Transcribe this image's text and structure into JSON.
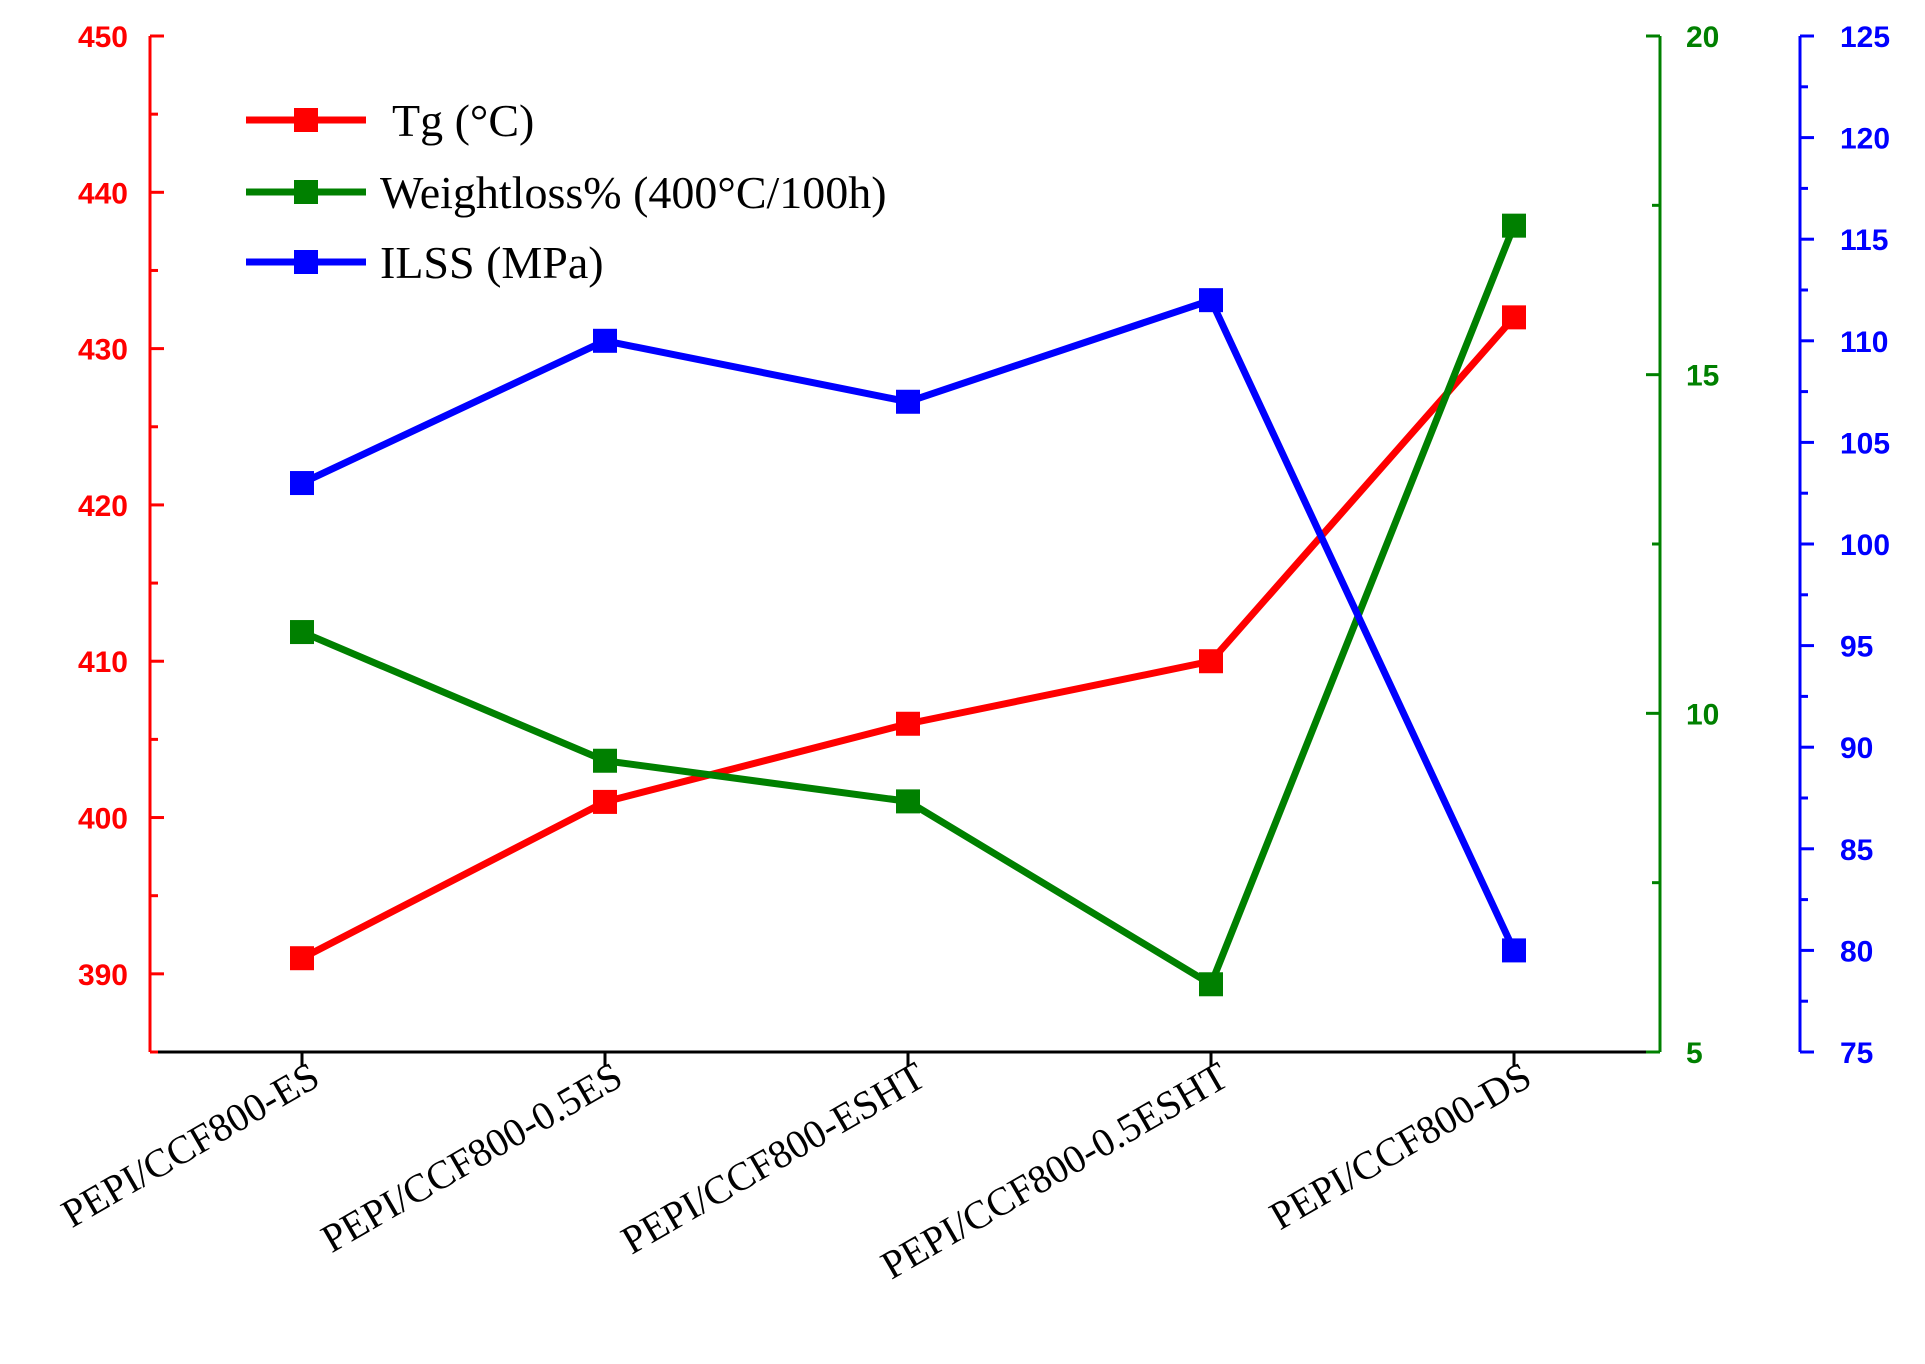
{
  "chart_data": {
    "type": "line",
    "categories": [
      "PEPI/CCF800-ES",
      "PEPI/CCF800-0.5ES",
      "PEPI/CCF800-ESHT",
      "PEPI/CCF800-0.5ESHT",
      "PEPI/CCF800-DS"
    ],
    "series": [
      {
        "name": "Tg (°C)",
        "axis": "left",
        "color": "#ff0000",
        "values": [
          391,
          401,
          406,
          410,
          432
        ]
      },
      {
        "name": "Weightloss% (400°C/100h)",
        "axis": "right1",
        "color": "#008000",
        "values": [
          11.2,
          9.3,
          8.7,
          6.0,
          17.2
        ]
      },
      {
        "name": "ILSS (MPa)",
        "axis": "right2",
        "color": "#0000ff",
        "values": [
          103,
          110,
          107,
          112,
          80
        ]
      }
    ],
    "axes": {
      "left": {
        "min": 385,
        "max": 450,
        "ticks": [
          390,
          400,
          410,
          420,
          430,
          440,
          450
        ],
        "color": "#ff0000"
      },
      "right1": {
        "min": 5,
        "max": 20,
        "ticks": [
          5,
          10,
          15,
          20
        ],
        "color": "#008000"
      },
      "right2": {
        "min": 75,
        "max": 125,
        "ticks": [
          75,
          80,
          85,
          90,
          95,
          100,
          105,
          110,
          115,
          120,
          125
        ],
        "color": "#0000ff"
      }
    },
    "title": "",
    "xlabel": "",
    "legend_position": "top-left",
    "grid": false
  }
}
